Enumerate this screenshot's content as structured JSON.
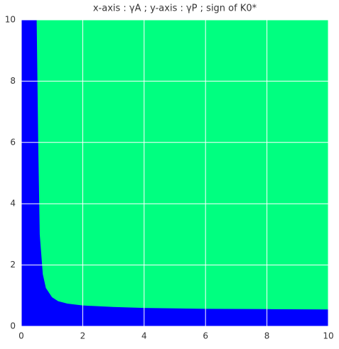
{
  "chart_data": {
    "type": "region",
    "title": "x-axis : γA ; y-axis : γP ; sign of K0*",
    "x": [
      0.5,
      0.55,
      0.6,
      0.7,
      0.8,
      1.0,
      1.2,
      1.5,
      2,
      3,
      4,
      6,
      8,
      10
    ],
    "values": [
      10,
      6,
      3,
      1.7,
      1.25,
      0.95,
      0.82,
      0.74,
      0.68,
      0.63,
      0.6,
      0.57,
      0.56,
      0.55
    ],
    "below_color": "#0000ff",
    "above_color": "#00ff80",
    "xlim": [
      0,
      10
    ],
    "ylim": [
      0,
      10
    ],
    "xticks": [
      0,
      2,
      4,
      6,
      8,
      10
    ],
    "yticks": [
      0,
      2,
      4,
      6,
      8,
      10
    ],
    "grid": true
  }
}
